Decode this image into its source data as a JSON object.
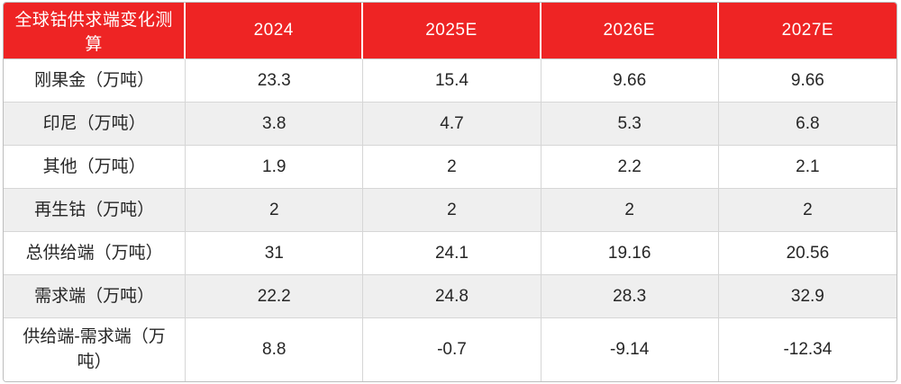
{
  "accent_color": "#ee2424",
  "row_alt_color": "#efefef",
  "chart_data": {
    "type": "table",
    "title": "全球钴供求端变化测算",
    "unit": "万吨",
    "columns": [
      "2024",
      "2025E",
      "2026E",
      "2027E"
    ],
    "rows": [
      {
        "label": "刚果金（万吨）",
        "values": [
          "23.3",
          "15.4",
          "9.66",
          "9.66"
        ]
      },
      {
        "label": "印尼（万吨）",
        "values": [
          "3.8",
          "4.7",
          "5.3",
          "6.8"
        ]
      },
      {
        "label": "其他（万吨）",
        "values": [
          "1.9",
          "2",
          "2.2",
          "2.1"
        ]
      },
      {
        "label": "再生钴（万吨）",
        "values": [
          "2",
          "2",
          "2",
          "2"
        ]
      },
      {
        "label": "总供给端（万吨）",
        "values": [
          "31",
          "24.1",
          "19.16",
          "20.56"
        ]
      },
      {
        "label": "需求端（万吨）",
        "values": [
          "22.2",
          "24.8",
          "28.3",
          "32.9"
        ]
      },
      {
        "label": "供给端-需求端（万吨）",
        "values": [
          "8.8",
          "-0.7",
          "-9.14",
          "-12.34"
        ]
      }
    ]
  }
}
